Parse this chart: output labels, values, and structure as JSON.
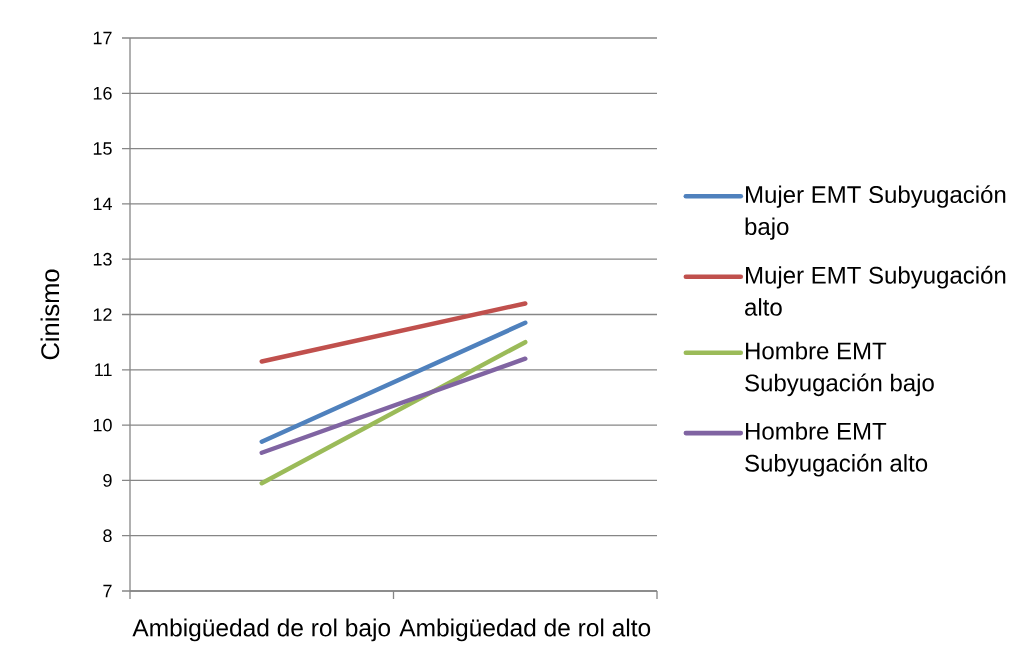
{
  "chart_data": {
    "type": "line",
    "ylabel": "Cinismo",
    "categories": [
      "Ambigüedad de rol bajo",
      "Ambigüedad de rol alto"
    ],
    "series": [
      {
        "name": "Mujer EMT Subyugación bajo",
        "color": "#4f81bd",
        "values": [
          9.7,
          11.85
        ]
      },
      {
        "name": "Mujer EMT Subyugación alto",
        "color": "#c0504d",
        "values": [
          11.15,
          12.2
        ]
      },
      {
        "name": "Hombre EMT Subyugación bajo",
        "color": "#9bbb59",
        "values": [
          8.95,
          11.5
        ]
      },
      {
        "name": "Hombre EMT Subyugación alto",
        "color": "#8064a2",
        "values": [
          9.5,
          11.2
        ]
      }
    ],
    "ylim": [
      7,
      17
    ],
    "yticks": [
      7,
      8,
      9,
      10,
      11,
      12,
      13,
      14,
      15,
      16,
      17
    ],
    "grid": "y",
    "legend": "right"
  }
}
